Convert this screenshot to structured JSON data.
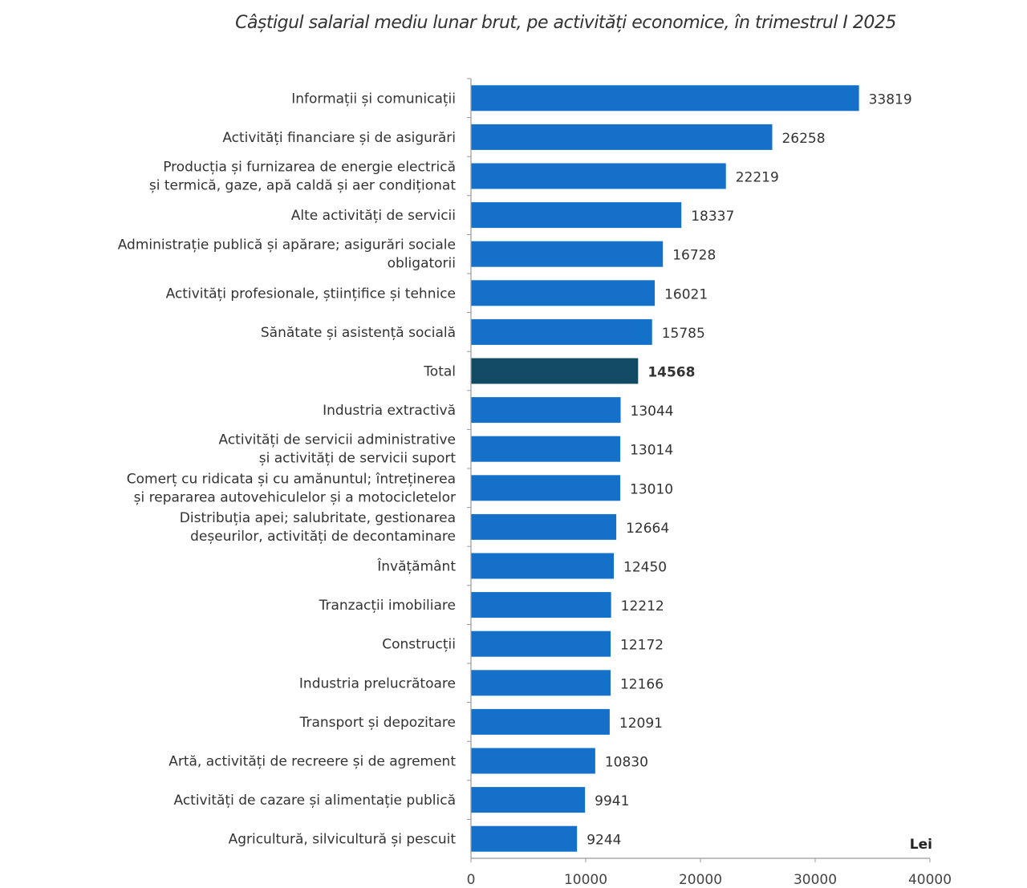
{
  "chart_data": {
    "type": "bar",
    "orientation": "horizontal",
    "title": "Câștigul salarial mediu lunar brut, pe activități economice, în trimestrul I 2025",
    "xlabel": "Lei",
    "ylabel": "",
    "xlim": [
      0,
      40000
    ],
    "xticks": [
      "0",
      "10000",
      "20000",
      "30000",
      "40000"
    ],
    "grid": false,
    "colors": {
      "default": "#1470c8",
      "highlight": "#134a63"
    },
    "highlight_category": "Total",
    "categories": [
      [
        "Informații și comunicații"
      ],
      [
        "Activități financiare și de asigurări"
      ],
      [
        "Producția și furnizarea de energie electrică",
        "și termică, gaze, apă caldă și aer condiționat"
      ],
      [
        "Alte activități de servicii"
      ],
      [
        "Administrație publică și apărare; asigurări sociale",
        "obligatorii"
      ],
      [
        "Activități profesionale, științifice și tehnice"
      ],
      [
        "Sănătate și asistență socială"
      ],
      [
        "Total"
      ],
      [
        "Industria extractivă"
      ],
      [
        "Activități de servicii administrative",
        "și activități de servicii suport"
      ],
      [
        "Comerț cu ridicata și cu amănuntul; întreținerea",
        "și repararea autovehiculelor și a motocicletelor"
      ],
      [
        "Distribuția apei; salubritate, gestionarea",
        "deșeurilor, activități de decontaminare"
      ],
      [
        "Învățământ"
      ],
      [
        "Tranzacții imobiliare"
      ],
      [
        "Construcții"
      ],
      [
        "Industria prelucrătoare"
      ],
      [
        "Transport și depozitare"
      ],
      [
        "Artă, activități de recreere și de agrement"
      ],
      [
        "Activități de cazare și alimentație publică"
      ],
      [
        "Agricultură, silvicultură și pescuit"
      ]
    ],
    "values": [
      33819,
      26258,
      22219,
      18337,
      16728,
      16021,
      15785,
      14568,
      13044,
      13014,
      13010,
      12664,
      12450,
      12212,
      12172,
      12166,
      12091,
      10830,
      9941,
      9244
    ]
  }
}
